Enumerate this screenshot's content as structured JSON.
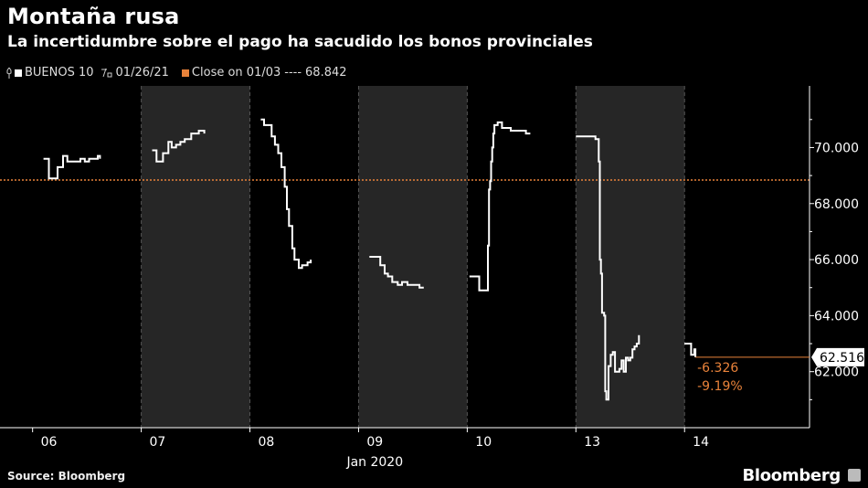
{
  "title": "Montaña rusa",
  "subtitle": "La incertidumbre sobre el pago ha sacudido los bonos provinciales",
  "legend": {
    "series_label": "BUENOS 10",
    "series_date": "01/26/21",
    "reference_label": "Close on 01/03",
    "reference_dashes": "----",
    "reference_value": "68.842"
  },
  "source": "Source: Bloomberg",
  "brand": "Bloomberg",
  "colors": {
    "background": "#000000",
    "line": "#ffffff",
    "reference": "#e8823a",
    "shade": "#262626"
  },
  "chart_data": {
    "type": "line",
    "series": [
      {
        "name": "BUENOS 10",
        "segments": [
          {
            "day": "06",
            "points": [
              [
                0.0,
                69.6
              ],
              [
                0.04,
                69.6
              ],
              [
                0.05,
                68.9
              ],
              [
                0.12,
                68.9
              ],
              [
                0.13,
                69.3
              ],
              [
                0.17,
                69.3
              ],
              [
                0.18,
                69.7
              ],
              [
                0.22,
                69.5
              ],
              [
                0.26,
                69.5
              ],
              [
                0.3,
                69.5
              ],
              [
                0.34,
                69.6
              ],
              [
                0.38,
                69.5
              ],
              [
                0.42,
                69.6
              ],
              [
                0.5,
                69.7
              ],
              [
                0.52,
                69.6
              ]
            ]
          },
          {
            "day": "07",
            "points": [
              [
                0.0,
                69.9
              ],
              [
                0.03,
                69.9
              ],
              [
                0.04,
                69.5
              ],
              [
                0.09,
                69.5
              ],
              [
                0.1,
                69.8
              ],
              [
                0.14,
                69.8
              ],
              [
                0.15,
                70.2
              ],
              [
                0.18,
                70.0
              ],
              [
                0.22,
                70.1
              ],
              [
                0.26,
                70.2
              ],
              [
                0.3,
                70.3
              ],
              [
                0.33,
                70.3
              ],
              [
                0.36,
                70.5
              ],
              [
                0.4,
                70.5
              ],
              [
                0.43,
                70.6
              ],
              [
                0.48,
                70.5
              ]
            ]
          },
          {
            "day": "08",
            "points": [
              [
                0.0,
                71.0
              ],
              [
                0.03,
                70.8
              ],
              [
                0.08,
                70.8
              ],
              [
                0.1,
                70.4
              ],
              [
                0.13,
                70.1
              ],
              [
                0.16,
                69.8
              ],
              [
                0.19,
                69.3
              ],
              [
                0.22,
                68.6
              ],
              [
                0.24,
                67.8
              ],
              [
                0.26,
                67.2
              ],
              [
                0.29,
                66.4
              ],
              [
                0.31,
                66.0
              ],
              [
                0.35,
                65.7
              ],
              [
                0.38,
                65.8
              ],
              [
                0.4,
                65.8
              ],
              [
                0.43,
                65.9
              ],
              [
                0.46,
                66.0
              ]
            ]
          },
          {
            "day": "09",
            "points": [
              [
                0.0,
                66.1
              ],
              [
                0.08,
                66.1
              ],
              [
                0.1,
                65.8
              ],
              [
                0.14,
                65.5
              ],
              [
                0.17,
                65.4
              ],
              [
                0.21,
                65.2
              ],
              [
                0.26,
                65.1
              ],
              [
                0.3,
                65.2
              ],
              [
                0.35,
                65.1
              ],
              [
                0.4,
                65.1
              ],
              [
                0.46,
                65.0
              ],
              [
                0.5,
                65.0
              ]
            ]
          },
          {
            "day": "10",
            "points": [
              [
                -0.08,
                65.4
              ],
              [
                0.0,
                65.4
              ],
              [
                0.01,
                64.9
              ],
              [
                0.08,
                64.9
              ],
              [
                0.09,
                66.5
              ],
              [
                0.1,
                68.5
              ],
              [
                0.11,
                68.8
              ],
              [
                0.12,
                69.5
              ],
              [
                0.13,
                70.0
              ],
              [
                0.14,
                70.5
              ],
              [
                0.15,
                70.8
              ],
              [
                0.18,
                70.9
              ],
              [
                0.22,
                70.7
              ],
              [
                0.26,
                70.7
              ],
              [
                0.3,
                70.6
              ],
              [
                0.35,
                70.6
              ],
              [
                0.4,
                70.6
              ],
              [
                0.44,
                70.5
              ],
              [
                0.48,
                70.5
              ]
            ]
          },
          {
            "day": "13",
            "points": [
              [
                -0.1,
                70.4
              ],
              [
                0.05,
                70.4
              ],
              [
                0.08,
                70.3
              ],
              [
                0.1,
                70.3
              ],
              [
                0.11,
                69.5
              ],
              [
                0.12,
                66.0
              ],
              [
                0.13,
                65.5
              ],
              [
                0.14,
                64.1
              ],
              [
                0.16,
                64.0
              ],
              [
                0.17,
                61.3
              ],
              [
                0.18,
                61.0
              ],
              [
                0.2,
                62.2
              ],
              [
                0.22,
                62.6
              ],
              [
                0.24,
                62.7
              ],
              [
                0.26,
                62.0
              ],
              [
                0.28,
                62.0
              ],
              [
                0.3,
                62.1
              ],
              [
                0.32,
                62.4
              ],
              [
                0.34,
                62.0
              ],
              [
                0.36,
                62.5
              ],
              [
                0.38,
                62.4
              ],
              [
                0.4,
                62.5
              ],
              [
                0.42,
                62.8
              ],
              [
                0.44,
                62.9
              ],
              [
                0.46,
                63.0
              ],
              [
                0.48,
                63.3
              ]
            ]
          },
          {
            "day": "14",
            "points": [
              [
                -0.1,
                63.0
              ],
              [
                -0.05,
                63.0
              ],
              [
                -0.04,
                62.6
              ],
              [
                -0.01,
                62.8
              ],
              [
                0.0,
                62.516
              ]
            ]
          }
        ]
      }
    ],
    "reference_line": {
      "label": "Close on 01/03",
      "value": 68.842
    },
    "last_value": 62.516,
    "change_abs": -6.326,
    "change_pct": -9.19,
    "last_label": "62.516",
    "change_abs_label": "-6.326",
    "change_pct_label": "-9.19%",
    "x_ticks": [
      "06",
      "07",
      "08",
      "09",
      "10",
      "13",
      "14"
    ],
    "x_axis_label": "Jan 2020",
    "y_ticks": [
      "62.000",
      "64.000",
      "66.000",
      "68.000",
      "70.000"
    ],
    "ylim": [
      60.0,
      72.2
    ],
    "shaded_days": [
      "07",
      "09",
      "13"
    ],
    "grid": false,
    "legend_position": "top-left"
  }
}
